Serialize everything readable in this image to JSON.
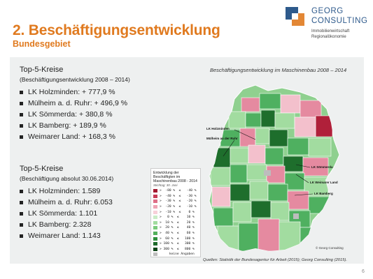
{
  "header": {
    "title": "2. Beschäftigungsentwicklung",
    "subtitle": "Bundesgebiet"
  },
  "logo": {
    "line1": "GEORG",
    "line2": "CONSULTING",
    "tag1": "Immobilienwirtschaft",
    "tag2": "Regionalökonomie"
  },
  "list1": {
    "head": "Top-5-Kreise",
    "sub": "(Beschäftigungsentwicklung 2008 – 2014)",
    "items": [
      "LK Holzminden: + 777,9 %",
      "Mülheim a. d. Ruhr: + 496,9 %",
      "LK Sömmerda: + 380,8 %",
      "LK Bamberg: + 189,9 %",
      "Weimarer Land: + 168,3 %"
    ]
  },
  "list2": {
    "head": "Top-5-Kreise",
    "sub": "(Beschäftigung absolut 30.06.2014)",
    "items": [
      "LK Holzminden: 1.589",
      "Mülheim a. d. Ruhr: 6.053",
      "LK Sömmerda: 1.101",
      "LK Bamberg: 2.328",
      "Weimarer Land: 1.143"
    ]
  },
  "map": {
    "title": "Beschäftigungsentwicklung im Maschinenbau 2008 – 2014",
    "labels": {
      "holzminden": "LK Holzminden",
      "muelheim": "Mülheim an der Ruhr",
      "soemmerda": "LK Sömmerda",
      "weimarer": "LK Weimarer Land",
      "bamberg": "LK Bamberg",
      "copyright": "© Georg Consulting"
    },
    "colors": {
      "land": "#8fd08f",
      "border": "#ffffff",
      "dark_red": "#b0203a",
      "pink": "#e58aa0",
      "light_pink": "#f3c0cc",
      "green": "#4fb060",
      "dark_green": "#1e6e2c",
      "grey": "#bdbdbd"
    }
  },
  "legend": {
    "title": "Entwicklung der Beschäftigten im Maschinenbau 2008 - 2014",
    "stichtag": "Stichtag: 30. Juni",
    "rows": [
      {
        "label": ">  -80 %  ≤   -40 %",
        "color": "#a3182f"
      },
      {
        "label": ">  -40 %  ≤   -30 %",
        "color": "#c73a55"
      },
      {
        "label": ">  -30 %  ≤   -20 %",
        "color": "#de6f87"
      },
      {
        "label": ">  -20 %  ≤   -10 %",
        "color": "#eea3b4"
      },
      {
        "label": ">  -10 %  ≤    0 %",
        "color": "#f7d0d9"
      },
      {
        "label": ">   0 %  ≤    10 %",
        "color": "#c9ecc6"
      },
      {
        "label": ">  10 %  ≤    20 %",
        "color": "#a2dca0"
      },
      {
        "label": ">  20 %  ≤    40 %",
        "color": "#7bcb7c"
      },
      {
        "label": ">  40 %  ≤    60 %",
        "color": "#52b05a"
      },
      {
        "label": ">  60 %  ≤   100 %",
        "color": "#2f8f3c"
      },
      {
        "label": "> 100 %  ≤   300 %",
        "color": "#1d6a2a"
      },
      {
        "label": "> 300 %  ≤   800 %",
        "color": "#0e4418"
      },
      {
        "label": "     keine Angaben",
        "color": "#bdbdbd"
      }
    ]
  },
  "source": "Quellen: Statistik der Bundesagentur für Arbeit (2015); Georg Consulting (2015).",
  "page_number": "6"
}
